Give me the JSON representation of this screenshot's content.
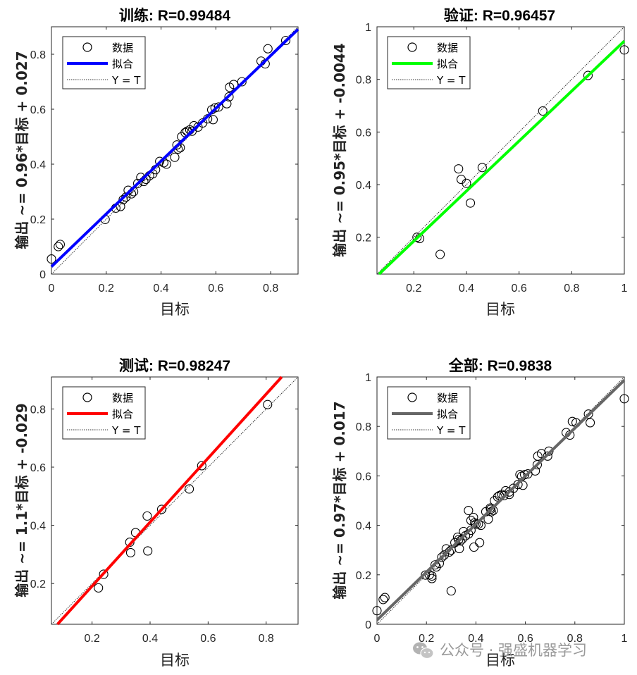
{
  "chart_data": [
    {
      "type": "scatter",
      "title": "训练: R=0.99484",
      "xlabel": "目标",
      "ylabel": "输出 ~= 0.96*目标 + 0.027",
      "xlim": [
        0,
        0.9
      ],
      "ylim": [
        0,
        0.9
      ],
      "xticks": [
        "0",
        "0.2",
        "0.4",
        "0.6",
        "0.8"
      ],
      "yticks": [
        "0",
        "0.2",
        "0.4",
        "0.6",
        "0.8"
      ],
      "fit": {
        "slope": 0.96,
        "intercept": 0.027
      },
      "legend": {
        "entries": [
          "数据",
          "拟合",
          "Y = T"
        ],
        "position": "top-left"
      },
      "colors": {
        "fit": "#0000ff"
      },
      "points": [
        [
          0.0,
          0.055
        ],
        [
          0.025,
          0.1
        ],
        [
          0.032,
          0.108
        ],
        [
          0.196,
          0.199
        ],
        [
          0.235,
          0.24
        ],
        [
          0.252,
          0.246
        ],
        [
          0.262,
          0.271
        ],
        [
          0.272,
          0.28
        ],
        [
          0.28,
          0.305
        ],
        [
          0.292,
          0.292
        ],
        [
          0.3,
          0.3
        ],
        [
          0.315,
          0.33
        ],
        [
          0.326,
          0.352
        ],
        [
          0.337,
          0.337
        ],
        [
          0.345,
          0.345
        ],
        [
          0.358,
          0.358
        ],
        [
          0.37,
          0.365
        ],
        [
          0.38,
          0.38
        ],
        [
          0.395,
          0.41
        ],
        [
          0.41,
          0.405
        ],
        [
          0.42,
          0.4
        ],
        [
          0.45,
          0.425
        ],
        [
          0.458,
          0.47
        ],
        [
          0.462,
          0.455
        ],
        [
          0.47,
          0.46
        ],
        [
          0.475,
          0.5
        ],
        [
          0.488,
          0.515
        ],
        [
          0.495,
          0.52
        ],
        [
          0.505,
          0.525
        ],
        [
          0.513,
          0.52
        ],
        [
          0.52,
          0.54
        ],
        [
          0.535,
          0.535
        ],
        [
          0.552,
          0.55
        ],
        [
          0.57,
          0.565
        ],
        [
          0.585,
          0.598
        ],
        [
          0.59,
          0.562
        ],
        [
          0.597,
          0.605
        ],
        [
          0.61,
          0.608
        ],
        [
          0.64,
          0.62
        ],
        [
          0.648,
          0.645
        ],
        [
          0.65,
          0.68
        ],
        [
          0.665,
          0.69
        ],
        [
          0.695,
          0.7
        ],
        [
          0.765,
          0.775
        ],
        [
          0.78,
          0.765
        ],
        [
          0.79,
          0.82
        ],
        [
          0.855,
          0.85
        ]
      ]
    },
    {
      "type": "scatter",
      "title": "验证: R=0.96457",
      "xlabel": "目标",
      "ylabel": "输出 ~= 0.95*目标 + -0.0044",
      "xlim": [
        0.06,
        1.0
      ],
      "ylim": [
        0.06,
        1.0
      ],
      "xticks": [
        "0.2",
        "0.4",
        "0.6",
        "0.8",
        "1"
      ],
      "yticks": [
        "0.2",
        "0.4",
        "0.6",
        "0.8",
        "1"
      ],
      "fit": {
        "slope": 0.95,
        "intercept": -0.0044
      },
      "legend": {
        "entries": [
          "数据",
          "拟合",
          "Y = T"
        ],
        "position": "top-left"
      },
      "colors": {
        "fit": "#00ff00"
      },
      "points": [
        [
          0.212,
          0.2
        ],
        [
          0.222,
          0.195
        ],
        [
          0.3,
          0.135
        ],
        [
          0.37,
          0.46
        ],
        [
          0.38,
          0.42
        ],
        [
          0.4,
          0.405
        ],
        [
          0.415,
          0.33
        ],
        [
          0.46,
          0.465
        ],
        [
          0.69,
          0.68
        ],
        [
          0.862,
          0.815
        ],
        [
          1.0,
          0.912
        ]
      ]
    },
    {
      "type": "scatter",
      "title": "测试: R=0.98247",
      "xlabel": "目标",
      "ylabel": "输出 ~= 1.1*目标 + -0.029",
      "xlim": [
        0.06,
        0.91
      ],
      "ylim": [
        0.06,
        0.91
      ],
      "xticks": [
        "0.2",
        "0.4",
        "0.6",
        "0.8"
      ],
      "yticks": [
        "0.2",
        "0.4",
        "0.6",
        "0.8"
      ],
      "fit": {
        "slope": 1.1,
        "intercept": -0.029
      },
      "legend": {
        "entries": [
          "数据",
          "拟合",
          "Y = T"
        ],
        "position": "top-left"
      },
      "colors": {
        "fit": "#ff0000"
      },
      "points": [
        [
          0.222,
          0.185
        ],
        [
          0.24,
          0.232
        ],
        [
          0.33,
          0.342
        ],
        [
          0.333,
          0.306
        ],
        [
          0.35,
          0.375
        ],
        [
          0.39,
          0.432
        ],
        [
          0.392,
          0.312
        ],
        [
          0.44,
          0.455
        ],
        [
          0.535,
          0.525
        ],
        [
          0.578,
          0.605
        ],
        [
          0.805,
          0.815
        ]
      ]
    },
    {
      "type": "scatter",
      "title": "全部: R=0.9838",
      "xlabel": "目标",
      "ylabel": "输出 ~= 0.97*目标 + 0.017",
      "xlim": [
        0,
        1.0
      ],
      "ylim": [
        0,
        1.0
      ],
      "xticks": [
        "0",
        "0.2",
        "0.4",
        "0.6",
        "0.8",
        "1"
      ],
      "yticks": [
        "0",
        "0.2",
        "0.4",
        "0.6",
        "0.8",
        "1"
      ],
      "fit": {
        "slope": 0.97,
        "intercept": 0.017
      },
      "legend": {
        "entries": [
          "数据",
          "拟合",
          "Y = T"
        ],
        "position": "top-left"
      },
      "colors": {
        "fit": "#666666"
      },
      "points": [
        [
          0.0,
          0.055
        ],
        [
          0.025,
          0.1
        ],
        [
          0.032,
          0.108
        ],
        [
          0.196,
          0.199
        ],
        [
          0.212,
          0.2
        ],
        [
          0.222,
          0.185
        ],
        [
          0.222,
          0.195
        ],
        [
          0.235,
          0.24
        ],
        [
          0.24,
          0.232
        ],
        [
          0.252,
          0.246
        ],
        [
          0.262,
          0.271
        ],
        [
          0.272,
          0.28
        ],
        [
          0.28,
          0.305
        ],
        [
          0.292,
          0.292
        ],
        [
          0.3,
          0.135
        ],
        [
          0.3,
          0.3
        ],
        [
          0.315,
          0.33
        ],
        [
          0.326,
          0.352
        ],
        [
          0.33,
          0.342
        ],
        [
          0.333,
          0.306
        ],
        [
          0.337,
          0.337
        ],
        [
          0.345,
          0.345
        ],
        [
          0.35,
          0.375
        ],
        [
          0.358,
          0.358
        ],
        [
          0.37,
          0.365
        ],
        [
          0.37,
          0.46
        ],
        [
          0.38,
          0.38
        ],
        [
          0.38,
          0.42
        ],
        [
          0.39,
          0.432
        ],
        [
          0.392,
          0.312
        ],
        [
          0.395,
          0.41
        ],
        [
          0.4,
          0.405
        ],
        [
          0.41,
          0.405
        ],
        [
          0.415,
          0.33
        ],
        [
          0.42,
          0.4
        ],
        [
          0.44,
          0.455
        ],
        [
          0.45,
          0.425
        ],
        [
          0.458,
          0.47
        ],
        [
          0.46,
          0.465
        ],
        [
          0.462,
          0.455
        ],
        [
          0.47,
          0.46
        ],
        [
          0.475,
          0.5
        ],
        [
          0.488,
          0.515
        ],
        [
          0.495,
          0.52
        ],
        [
          0.505,
          0.525
        ],
        [
          0.513,
          0.52
        ],
        [
          0.52,
          0.54
        ],
        [
          0.535,
          0.525
        ],
        [
          0.535,
          0.535
        ],
        [
          0.552,
          0.55
        ],
        [
          0.57,
          0.565
        ],
        [
          0.578,
          0.605
        ],
        [
          0.585,
          0.598
        ],
        [
          0.59,
          0.562
        ],
        [
          0.597,
          0.605
        ],
        [
          0.61,
          0.608
        ],
        [
          0.64,
          0.62
        ],
        [
          0.648,
          0.645
        ],
        [
          0.65,
          0.68
        ],
        [
          0.665,
          0.69
        ],
        [
          0.69,
          0.68
        ],
        [
          0.695,
          0.7
        ],
        [
          0.765,
          0.775
        ],
        [
          0.78,
          0.765
        ],
        [
          0.79,
          0.82
        ],
        [
          0.805,
          0.815
        ],
        [
          0.855,
          0.85
        ],
        [
          0.862,
          0.815
        ],
        [
          1.0,
          0.912
        ]
      ]
    }
  ],
  "watermark": {
    "text": "公众号 · 强盛机器学习",
    "icon": "wechat-icon"
  }
}
